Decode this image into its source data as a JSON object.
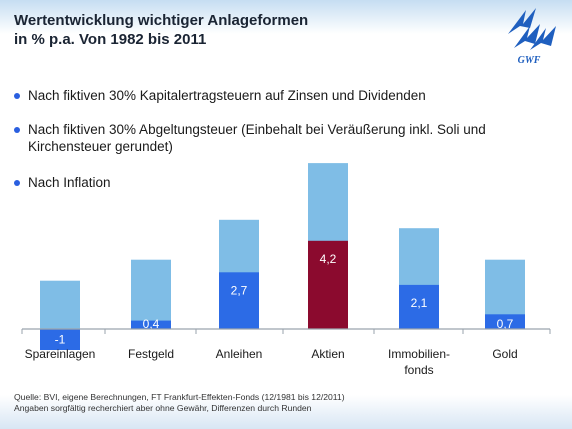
{
  "title": "Wertentwicklung wichtiger Anlageformen\nin % p.a. Von 1982 bis 2011",
  "logo": {
    "text": "GWF",
    "icon": "gwf-logo",
    "color": "#1f5fbf"
  },
  "legend": [
    {
      "label": "Nach fiktiven 30% Kapitalertragsteuern auf Zinsen und Dividenden",
      "icon": "bullet-dot"
    },
    {
      "label": "Nach fiktiven 30% Abgeltungsteuer (Einbehalt bei Veräußerung inkl. Soli und Kirchensteuer gerundet)",
      "icon": "bullet-dot"
    },
    {
      "label": "Nach Inflation",
      "icon": "bullet-dot"
    }
  ],
  "chart_data": {
    "type": "bar",
    "categories": [
      "Spareinlagen",
      "Festgeld",
      "Anleihen",
      "Aktien",
      "Immobilien-fonds",
      "Gold"
    ],
    "category_labels": [
      [
        "Spareinlagen"
      ],
      [
        "Festgeld"
      ],
      [
        "Anleihen"
      ],
      [
        "Aktien"
      ],
      [
        "Immobilien-",
        "fonds"
      ],
      [
        "Gold"
      ]
    ],
    "series": [
      {
        "values": [
          2.3,
          3.3,
          5.2,
          7.9,
          4.8,
          3.3
        ]
      },
      {
        "values": [
          -1,
          0.4,
          2.7,
          4.2,
          2.1,
          0.7
        ]
      }
    ],
    "data_labels": [
      "-1",
      "0,4",
      "2,7",
      "4,2",
      "2,1",
      "0,7"
    ],
    "colors": {
      "series_light": "#7fbde6",
      "series_dark": "#2c6be6",
      "highlight": "#8b0a2e",
      "axis": "#9aa3ad"
    },
    "highlight_index": 3,
    "ylim": [
      -1,
      8
    ],
    "grid": false
  },
  "footer": {
    "source": "Quelle: BVI, eigene Berechnungen, FT Frankfurt-Effekten-Fonds (12/1981 bis 12/2011)",
    "disclaimer": "Angaben sorgfältig recherchiert aber ohne Gewähr, Differenzen durch Runden"
  }
}
